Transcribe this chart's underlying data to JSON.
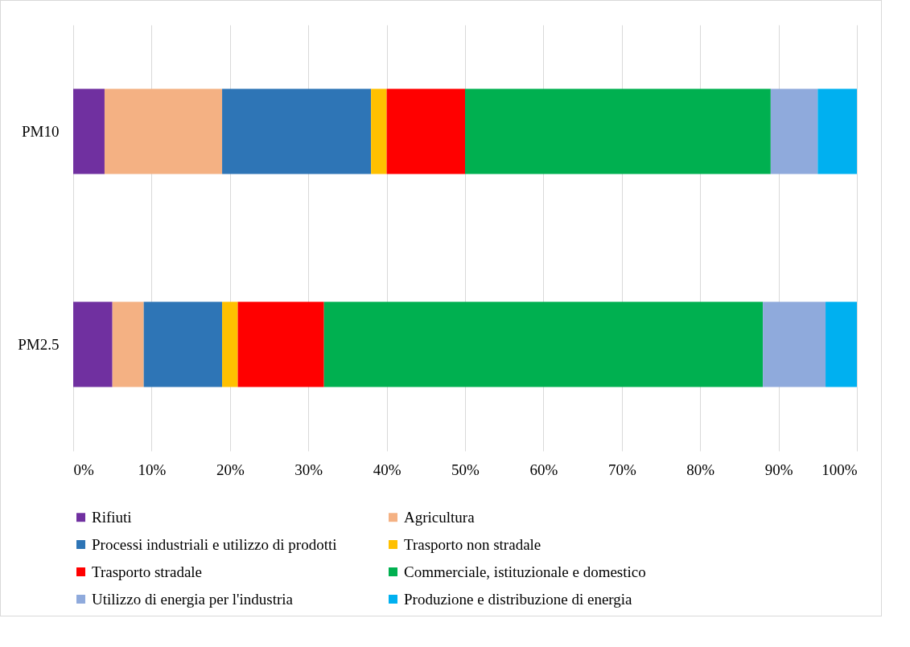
{
  "chart_data": {
    "type": "bar",
    "orientation": "horizontal",
    "stacked": true,
    "categories": [
      "PM10",
      "PM2.5"
    ],
    "xlim": [
      0,
      100
    ],
    "xticks": [
      {
        "value": 0,
        "label": "0%"
      },
      {
        "value": 10,
        "label": "10%"
      },
      {
        "value": 20,
        "label": "20%"
      },
      {
        "value": 30,
        "label": "30%"
      },
      {
        "value": 40,
        "label": "40%"
      },
      {
        "value": 50,
        "label": "50%"
      },
      {
        "value": 60,
        "label": "60%"
      },
      {
        "value": 70,
        "label": "70%"
      },
      {
        "value": 80,
        "label": "80%"
      },
      {
        "value": 90,
        "label": "90%"
      },
      {
        "value": 100,
        "label": "100%"
      }
    ],
    "grid": "x",
    "legend": "bottom",
    "series": [
      {
        "name": "Rifiuti",
        "color": "#7030a0",
        "values": [
          4,
          5
        ]
      },
      {
        "name": "Agricultura",
        "color": "#f4b183",
        "values": [
          15,
          4
        ]
      },
      {
        "name": "Processi industriali e utilizzo di prodotti",
        "color": "#2e75b6",
        "values": [
          19,
          10
        ]
      },
      {
        "name": "Trasporto non stradale",
        "color": "#ffc000",
        "values": [
          2,
          2
        ]
      },
      {
        "name": "Trasporto stradale",
        "color": "#ff0000",
        "values": [
          10,
          11
        ]
      },
      {
        "name": "Commerciale, istituzionale e domestico",
        "color": "#00b050",
        "values": [
          39,
          56
        ]
      },
      {
        "name": "Utilizzo di energia per l'industria",
        "color": "#8faadc",
        "values": [
          6,
          8
        ]
      },
      {
        "name": "Produzione e distribuzione di energia",
        "color": "#00b0f0",
        "values": [
          5,
          4
        ]
      }
    ]
  }
}
